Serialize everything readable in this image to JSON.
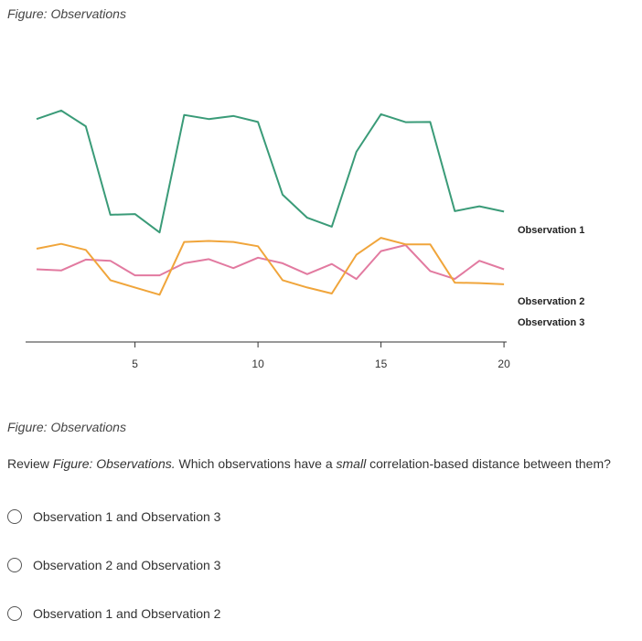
{
  "figure": {
    "caption": "Figure: Observations"
  },
  "chart_data": {
    "type": "line",
    "x": [
      1,
      2,
      3,
      4,
      5,
      6,
      7,
      8,
      9,
      10,
      11,
      12,
      13,
      14,
      15,
      16,
      17,
      18,
      19,
      20
    ],
    "xticks": [
      5,
      10,
      15,
      20
    ],
    "xlim": [
      0.5,
      20.5
    ],
    "grid": false,
    "legend": "inline labels at right end of each line",
    "series": [
      {
        "name": "Observation 1",
        "color": "#3a9b78",
        "values": [
          9.2,
          9.55,
          8.9,
          5.25,
          5.28,
          4.52,
          9.37,
          9.2,
          9.33,
          9.08,
          6.08,
          5.13,
          4.76,
          7.85,
          9.4,
          9.07,
          9.08,
          5.4,
          5.6,
          5.38
        ]
      },
      {
        "name": "Observation 2",
        "color": "#e27aa0",
        "values": [
          3.0,
          2.95,
          3.4,
          3.35,
          2.75,
          2.75,
          3.25,
          3.42,
          3.05,
          3.48,
          3.25,
          2.8,
          3.22,
          2.6,
          3.75,
          4.0,
          2.93,
          2.6,
          3.35,
          3.0
        ]
      },
      {
        "name": "Observation 3",
        "color": "#f0a53b",
        "values": [
          3.85,
          4.05,
          3.8,
          2.55,
          2.25,
          1.95,
          4.13,
          4.17,
          4.13,
          3.95,
          2.55,
          2.25,
          2.0,
          3.6,
          4.3,
          4.03,
          4.03,
          2.45,
          2.43,
          2.38
        ]
      }
    ]
  },
  "question": {
    "prefix": "Review ",
    "figure_ref": "Figure: Observations.",
    "middle": " Which observations have a ",
    "emphasis": "small",
    "suffix": " correlation-based distance between them?"
  },
  "options": [
    {
      "label": "Observation 1 and Observation 3"
    },
    {
      "label": "Observation 2 and Observation 3"
    },
    {
      "label": "Observation 1 and Observation 2"
    }
  ]
}
